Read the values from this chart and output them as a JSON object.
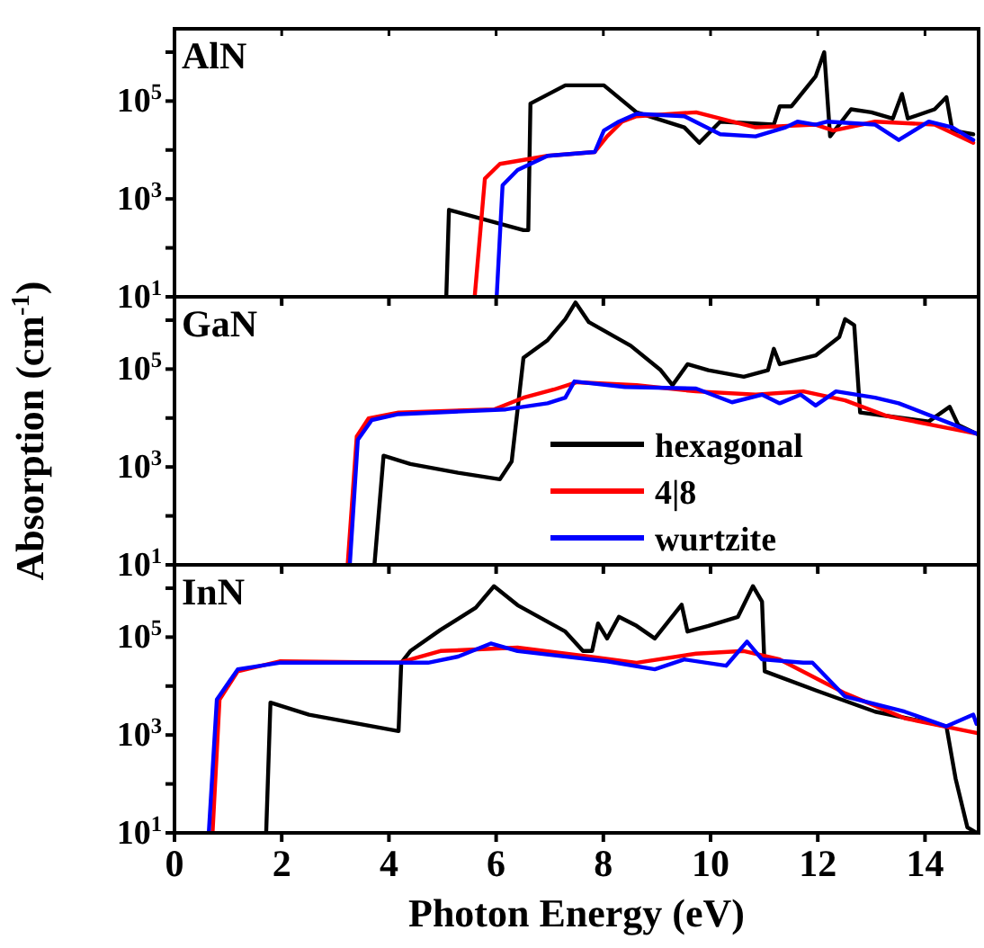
{
  "chart_data": [
    {
      "type": "line",
      "title": "AlN",
      "xlim": [
        0,
        15
      ],
      "xticks": [
        0,
        2,
        4,
        6,
        8,
        10,
        12,
        14
      ],
      "log": "y",
      "ylim": [
        10,
        3000000
      ],
      "yticks": [
        {
          "value": 10,
          "label": "10$^{1}$"
        },
        {
          "value": 100,
          "label": null
        },
        {
          "value": 1000,
          "label": "10$^{3}$"
        },
        {
          "value": 10000,
          "label": null
        },
        {
          "value": 100000,
          "label": "10$^{5}$"
        },
        {
          "value": 1000000,
          "label": null
        }
      ],
      "tick_labels": "y",
      "legend": false,
      "series": [
        {
          "color": "#000000",
          "x": [
            5.07,
            5.12,
            6.51,
            6.6,
            6.64,
            7.29,
            8.01,
            8.62,
            9.51,
            9.79,
            10.18,
            11.18,
            11.29,
            11.51,
            11.96,
            12.12,
            12.23,
            12.62,
            13.0,
            13.4,
            13.57,
            13.68,
            14.18,
            14.4,
            14.51,
            14.9
          ],
          "values": [
            10,
            600,
            230,
            230,
            89000,
            210000,
            210000,
            59000,
            29000,
            14000,
            38000,
            33000,
            78000,
            78000,
            320000,
            1000000,
            19000,
            68000,
            59000,
            44000,
            140000,
            44000,
            68000,
            120000,
            25000,
            21000
          ]
        },
        {
          "color": "#ff0000",
          "x": [
            5.6,
            5.79,
            6.07,
            6.96,
            7.84,
            8.07,
            8.35,
            8.62,
            9.73,
            10.4,
            10.84,
            11.96,
            12.29,
            13.07,
            14.18,
            14.9
          ],
          "values": [
            10,
            2600,
            5200,
            7600,
            9100,
            19000,
            38000,
            49000,
            59000,
            38000,
            29000,
            33000,
            25000,
            38000,
            33000,
            14000
          ]
        },
        {
          "color": "#0000ff",
          "x": [
            6.01,
            6.12,
            6.4,
            6.96,
            7.84,
            8.01,
            8.29,
            8.62,
            9.51,
            10.18,
            10.84,
            11.4,
            11.62,
            11.96,
            12.18,
            13.07,
            13.51,
            14.07,
            14.51,
            14.9
          ],
          "values": [
            10,
            1900,
            3900,
            7600,
            9100,
            25000,
            38000,
            55000,
            49000,
            21000,
            19000,
            29000,
            38000,
            33000,
            38000,
            33000,
            16000,
            38000,
            29000,
            16000
          ]
        }
      ]
    },
    {
      "type": "line",
      "title": "GaN",
      "ylabel": "Absorption (cm$^{-1}$)",
      "xlim": [
        0,
        15
      ],
      "xticks": [
        0,
        2,
        4,
        6,
        8,
        10,
        12,
        14
      ],
      "log": "y",
      "ylim": [
        10,
        3000000
      ],
      "yticks": [
        {
          "value": 10,
          "label": "10$^{1}$"
        },
        {
          "value": 100,
          "label": null
        },
        {
          "value": 1000,
          "label": "10$^{3}$"
        },
        {
          "value": 10000,
          "label": null
        },
        {
          "value": 100000,
          "label": "10$^{5}$"
        },
        {
          "value": 1000000,
          "label": null
        }
      ],
      "tick_labels": "y",
      "legend": "bottom right",
      "series": [
        {
          "name": "hexagonal",
          "color": "#000000",
          "x": [
            3.73,
            3.9,
            4.4,
            5.29,
            6.07,
            6.29,
            6.51,
            6.96,
            7.29,
            7.48,
            7.73,
            8.51,
            9.07,
            9.29,
            9.57,
            9.96,
            10.62,
            11.07,
            11.18,
            11.29,
            11.96,
            12.4,
            12.51,
            12.68,
            12.79,
            13.29,
            14.07,
            14.46,
            14.62,
            14.96
          ],
          "values": [
            10,
            1700,
            1150,
            760,
            560,
            1300,
            170000,
            390000,
            1050000,
            2300000,
            910000,
            300000,
            95000,
            47000,
            126000,
            95000,
            70000,
            95000,
            260000,
            126000,
            190000,
            450000,
            1050000,
            790000,
            13000,
            11000,
            8500,
            17000,
            7200,
            4800
          ]
        },
        {
          "name": "4|8",
          "color": "#ff0000",
          "x": [
            3.23,
            3.4,
            3.62,
            4.18,
            5.96,
            6.51,
            7.07,
            7.51,
            8.62,
            9.73,
            10.84,
            11.73,
            12.51,
            13.29,
            14.96
          ],
          "values": [
            10,
            4200,
            9800,
            13000,
            15000,
            26000,
            38000,
            54000,
            47000,
            35000,
            30000,
            35000,
            23000,
            11000,
            4800
          ]
        },
        {
          "name": "wurtzite",
          "color": "#0000ff",
          "x": [
            3.27,
            3.42,
            3.68,
            4.18,
            6.18,
            6.96,
            7.29,
            7.46,
            8.4,
            9.73,
            10.4,
            10.96,
            11.29,
            11.68,
            11.96,
            12.34,
            13.07,
            13.51,
            14.96
          ],
          "values": [
            10,
            3600,
            9100,
            12000,
            15000,
            20000,
            26000,
            56000,
            43000,
            40000,
            21000,
            30000,
            20000,
            30000,
            18000,
            35000,
            26000,
            20000,
            4800
          ]
        }
      ]
    },
    {
      "type": "line",
      "title": "InN",
      "xlabel": "Photon Energy (eV)",
      "xlim": [
        0,
        15
      ],
      "xticks": [
        0,
        2,
        4,
        6,
        8,
        10,
        12,
        14
      ],
      "log": "y",
      "ylim": [
        10,
        3000000
      ],
      "yticks": [
        {
          "value": 10,
          "label": "10$^{1}$"
        },
        {
          "value": 100,
          "label": null
        },
        {
          "value": 1000,
          "label": "10$^{3}$"
        },
        {
          "value": 10000,
          "label": null
        },
        {
          "value": 100000,
          "label": "10$^{5}$"
        },
        {
          "value": 1000000,
          "label": null
        }
      ],
      "legend": false,
      "series": [
        {
          "color": "#000000",
          "x": [
            1.71,
            1.79,
            2.51,
            4.18,
            4.23,
            4.4,
            4.96,
            5.62,
            5.96,
            6.4,
            7.29,
            7.62,
            7.79,
            7.9,
            8.07,
            8.29,
            8.62,
            8.96,
            9.46,
            9.57,
            9.96,
            10.51,
            10.79,
            10.96,
            11.01,
            11.96,
            13.07,
            14.4,
            14.57,
            14.79,
            14.96
          ],
          "values": [
            10,
            4600,
            2600,
            1200,
            30000,
            52000,
            140000,
            400000,
            1100000,
            450000,
            130000,
            52000,
            52000,
            190000,
            94000,
            260000,
            170000,
            94000,
            460000,
            130000,
            170000,
            260000,
            1100000,
            530000,
            20000,
            8200,
            3000,
            1500,
            130,
            13,
            10
          ]
        },
        {
          "color": "#ff0000",
          "x": [
            0.71,
            0.84,
            1.18,
            1.96,
            4.18,
            4.96,
            6.4,
            7.73,
            8.62,
            9.73,
            10.62,
            11.29,
            12.51,
            13.62,
            14.96
          ],
          "values": [
            10,
            5300,
            20000,
            32000,
            30000,
            52000,
            61000,
            40000,
            30000,
            46000,
            52000,
            35000,
            7100,
            2200,
            1100
          ]
        },
        {
          "color": "#0000ff",
          "x": [
            0.64,
            0.79,
            1.18,
            1.96,
            4.73,
            5.29,
            5.9,
            6.4,
            8.07,
            8.96,
            9.51,
            10.29,
            10.68,
            10.96,
            11.73,
            11.9,
            12.51,
            13.62,
            14.4,
            14.9,
            14.96
          ],
          "values": [
            10,
            5300,
            22000,
            30000,
            30000,
            40000,
            74000,
            52000,
            32000,
            22000,
            35000,
            26000,
            81000,
            35000,
            30000,
            30000,
            6100,
            3000,
            1500,
            2600,
            1700
          ]
        }
      ]
    }
  ]
}
